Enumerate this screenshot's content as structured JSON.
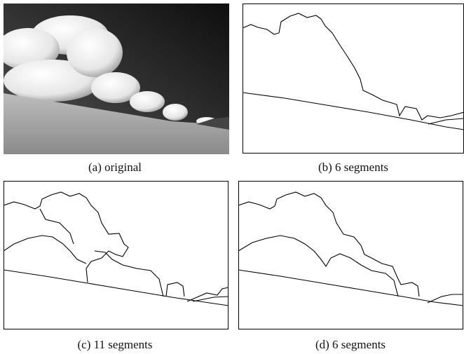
{
  "panels": [
    {
      "caption": "(a) original"
    },
    {
      "caption": "(b) 6 segments"
    },
    {
      "caption": "(c) 11 segments"
    },
    {
      "caption": "(d) 6 segments"
    }
  ]
}
